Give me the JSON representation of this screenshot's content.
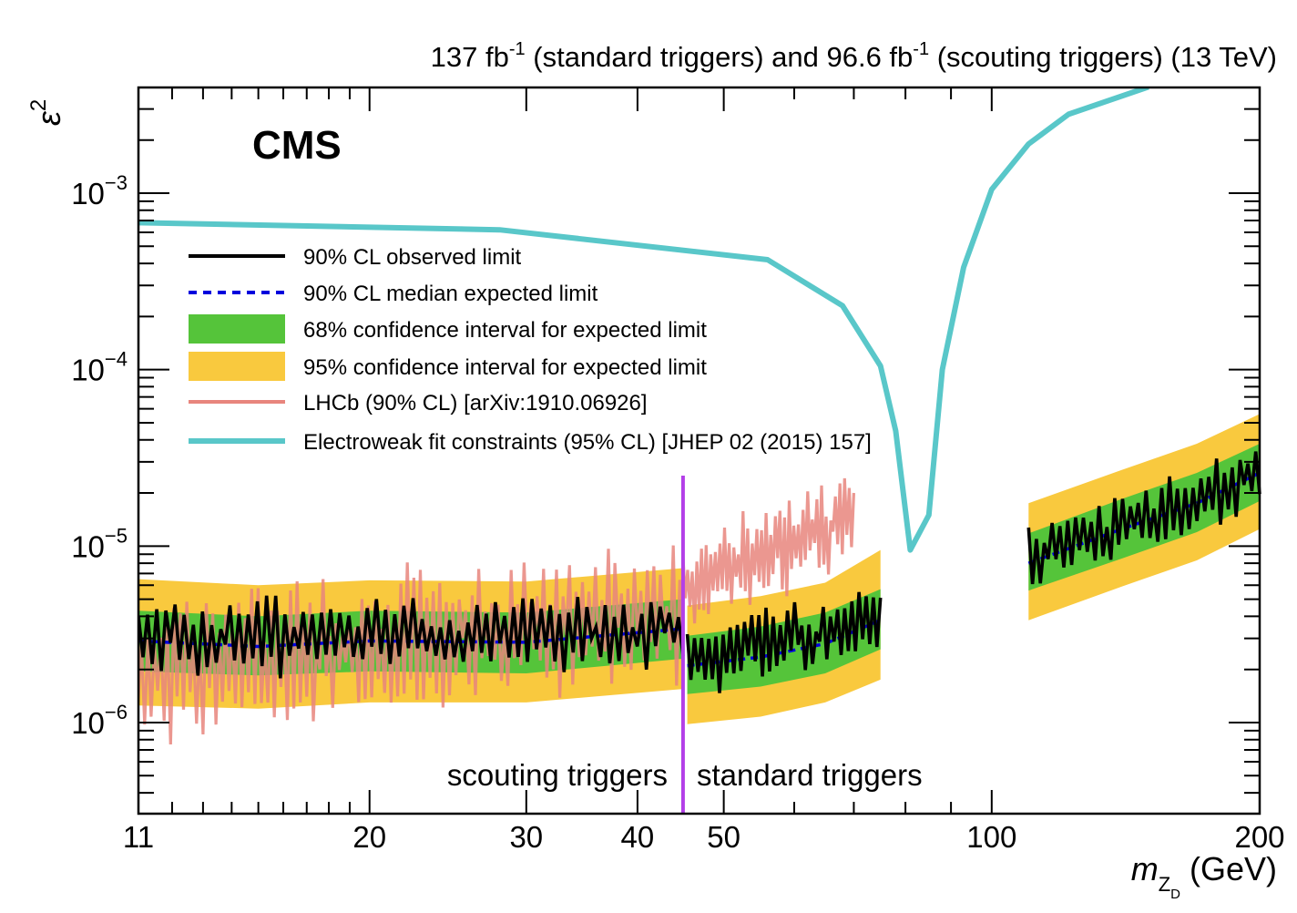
{
  "chart_data": {
    "type": "line",
    "title": {
      "lumi_std": "137 fb",
      "lumi_std_exp": "-1",
      "lumi_std_suffix": " (standard triggers) and 96.6 fb",
      "lumi_sct_exp": "-1",
      "lumi_sct_suffix": " (scouting triggers) (13 TeV)"
    },
    "experiment_label": "CMS",
    "ylabel": {
      "base": "ε",
      "exp": "2"
    },
    "xlabel": {
      "m": "m",
      "sub": "Z",
      "subsub": "D",
      "unit": " (GeV)"
    },
    "xscale": "log",
    "yscale": "log",
    "xlim": [
      11,
      205
    ],
    "ylim": [
      3e-07,
      0.004
    ],
    "xticks": [
      {
        "value": 11,
        "label": "11"
      },
      {
        "value": 20,
        "label": "20"
      },
      {
        "value": 30,
        "label": "30"
      },
      {
        "value": 40,
        "label": "40"
      },
      {
        "value": 50,
        "label": "50"
      },
      {
        "value": 100,
        "label": "100"
      },
      {
        "value": 200,
        "label": "200"
      }
    ],
    "yticks": [
      {
        "value": 0.001,
        "base": "10",
        "exp": "−3"
      },
      {
        "value": 0.0001,
        "base": "10",
        "exp": "−4"
      },
      {
        "value": 1e-05,
        "base": "10",
        "exp": "−5"
      },
      {
        "value": 1e-06,
        "base": "10",
        "exp": "−6"
      }
    ],
    "trigger_boundary": 45,
    "region_labels": {
      "left": "scouting triggers",
      "right": "standard triggers"
    },
    "legend": [
      {
        "key": "observed",
        "label": "90% CL observed limit"
      },
      {
        "key": "expected",
        "label": "90% CL median expected limit"
      },
      {
        "key": "band68",
        "label": "68% confidence interval for expected limit"
      },
      {
        "key": "band95",
        "label": "95% confidence interval for expected limit"
      },
      {
        "key": "lhcb",
        "label": "LHCb (90% CL) [arXiv:1910.06926]"
      },
      {
        "key": "ewk",
        "label": "Electroweak fit constraints (95% CL) [JHEP 02 (2015) 157]"
      }
    ],
    "colors": {
      "observed": "#000000",
      "expected": "#0000dd",
      "band68": "#55c43a",
      "band95": "#f9c93e",
      "lhcb": "#e8857d",
      "ewk": "#59c7c9",
      "boundary": "#b33fe8"
    },
    "series": [
      {
        "name": "Electroweak fit constraints (95% CL) [JHEP 02 (2015) 157]",
        "x": [
          11,
          28,
          56,
          68,
          75,
          78,
          81,
          85,
          88,
          93,
          100,
          110,
          122,
          150
        ],
        "y": [
          0.00068,
          0.00062,
          0.00042,
          0.00023,
          0.000105,
          4.5e-05,
          9.5e-06,
          1.5e-05,
          0.0001,
          0.00038,
          0.00105,
          0.0019,
          0.0028,
          0.004
        ]
      },
      {
        "name": "90% CL median expected limit",
        "segments": [
          {
            "x": [
              11,
              15,
              20,
              30,
              45
            ],
            "y": [
              2.9e-06,
              2.7e-06,
              2.9e-06,
              2.85e-06,
              3.4e-06
            ]
          },
          {
            "x": [
              45.5,
              55,
              65,
              75
            ],
            "y": [
              2.1e-06,
              2.35e-06,
              2.8e-06,
              3.8e-06
            ]
          },
          {
            "x": [
              110,
              140,
              170,
              200
            ],
            "y": [
              8e-06,
              1.25e-05,
              1.75e-05,
              2.6e-05
            ]
          }
        ]
      },
      {
        "name": "68% confidence interval for expected limit",
        "segments": [
          {
            "x": [
              11,
              15,
              20,
              30,
              45
            ],
            "lo": [
              1.95e-06,
              1.85e-06,
              1.95e-06,
              1.9e-06,
              2.3e-06
            ],
            "hi": [
              4.3e-06,
              4e-06,
              4.3e-06,
              4.2e-06,
              5e-06
            ]
          },
          {
            "x": [
              45.5,
              55,
              65,
              75
            ],
            "lo": [
              1.45e-06,
              1.6e-06,
              1.9e-06,
              2.6e-06
            ],
            "hi": [
              3.1e-06,
              3.5e-06,
              4.2e-06,
              5.7e-06
            ]
          },
          {
            "x": [
              110,
              140,
              170,
              200
            ],
            "lo": [
              5.6e-06,
              8.5e-06,
              1.2e-05,
              1.8e-05
            ],
            "hi": [
              1.18e-05,
              1.85e-05,
              2.6e-05,
              3.8e-05
            ]
          }
        ]
      },
      {
        "name": "95% confidence interval for expected limit",
        "segments": [
          {
            "x": [
              11,
              15,
              20,
              30,
              45
            ],
            "lo": [
              1.25e-06,
              1.2e-06,
              1.3e-06,
              1.3e-06,
              1.55e-06
            ],
            "hi": [
              6.5e-06,
              6e-06,
              6.4e-06,
              6.3e-06,
              7.5e-06
            ]
          },
          {
            "x": [
              45.5,
              55,
              65,
              75
            ],
            "lo": [
              9.8e-07,
              1.08e-06,
              1.3e-06,
              1.75e-06
            ],
            "hi": [
              4.6e-06,
              5.2e-06,
              6.2e-06,
              9.5e-06
            ]
          },
          {
            "x": [
              110,
              140,
              170,
              200
            ],
            "lo": [
              3.8e-06,
              5.9e-06,
              8.3e-06,
              1.25e-05
            ],
            "hi": [
              1.75e-05,
              2.7e-05,
              3.8e-05,
              5.6e-05
            ]
          }
        ]
      },
      {
        "name": "90% CL observed limit",
        "segments": [
          {
            "x_range": [
              11,
              45
            ],
            "n": 120,
            "base": [
              2.9e-06,
              3.4e-06
            ],
            "amp": 0.45,
            "seed": 3
          },
          {
            "x_range": [
              45.5,
              75
            ],
            "n": 55,
            "base": [
              2.2e-06,
              3.8e-06
            ],
            "amp": 0.45,
            "seed": 11
          },
          {
            "x_range": [
              110,
              200
            ],
            "n": 60,
            "base": [
              8e-06,
              2.6e-05
            ],
            "amp": 0.4,
            "seed": 23
          }
        ]
      },
      {
        "name": "LHCb (90% CL) [arXiv:1910.06926]",
        "segments": [
          {
            "x_range": [
              10.9,
              45
            ],
            "n": 170,
            "base": [
              2e-06,
              4.2e-06
            ],
            "amp": 0.85,
            "seed": 7
          },
          {
            "x_range": [
              45,
              70
            ],
            "n": 75,
            "base": [
              6e-06,
              1.5e-05
            ],
            "amp": 0.55,
            "seed": 17
          }
        ]
      }
    ]
  }
}
